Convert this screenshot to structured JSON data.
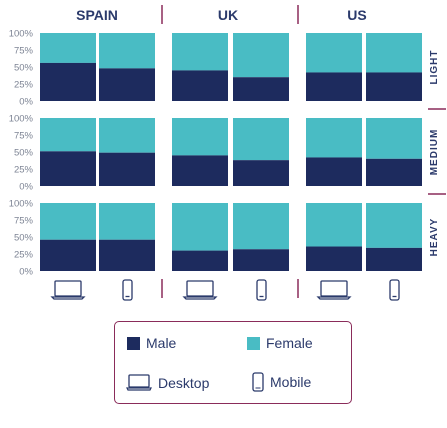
{
  "chart_data": {
    "type": "bar",
    "stacked": true,
    "normalized": true,
    "columns": [
      "SPAIN",
      "UK",
      "US"
    ],
    "rows": [
      "LIGHT",
      "MEDIUM",
      "HEAVY"
    ],
    "devices": [
      "Desktop",
      "Mobile"
    ],
    "series": [
      {
        "name": "Male",
        "color": "#1d2b5e"
      },
      {
        "name": "Female",
        "color": "#49bcc4"
      }
    ],
    "male_share_percent": {
      "LIGHT": {
        "SPAIN": [
          56,
          48
        ],
        "UK": [
          45,
          35
        ],
        "US": [
          42,
          42
        ]
      },
      "MEDIUM": {
        "SPAIN": [
          51,
          49
        ],
        "UK": [
          45,
          38
        ],
        "US": [
          42,
          40
        ]
      },
      "HEAVY": {
        "SPAIN": [
          46,
          46
        ],
        "UK": [
          30,
          32
        ],
        "US": [
          36,
          34
        ]
      }
    },
    "y_ticks": [
      "100%",
      "75%",
      "50%",
      "25%",
      "0%"
    ],
    "ylim": [
      0,
      100
    ]
  },
  "legend": {
    "male": "Male",
    "female": "Female",
    "desktop": "Desktop",
    "mobile": "Mobile"
  },
  "colors": {
    "male": "#1d2b5e",
    "female": "#49bcc4",
    "accent": "#8a2c5a",
    "text": "#2b3a6b",
    "axis_text": "#7d8494"
  }
}
